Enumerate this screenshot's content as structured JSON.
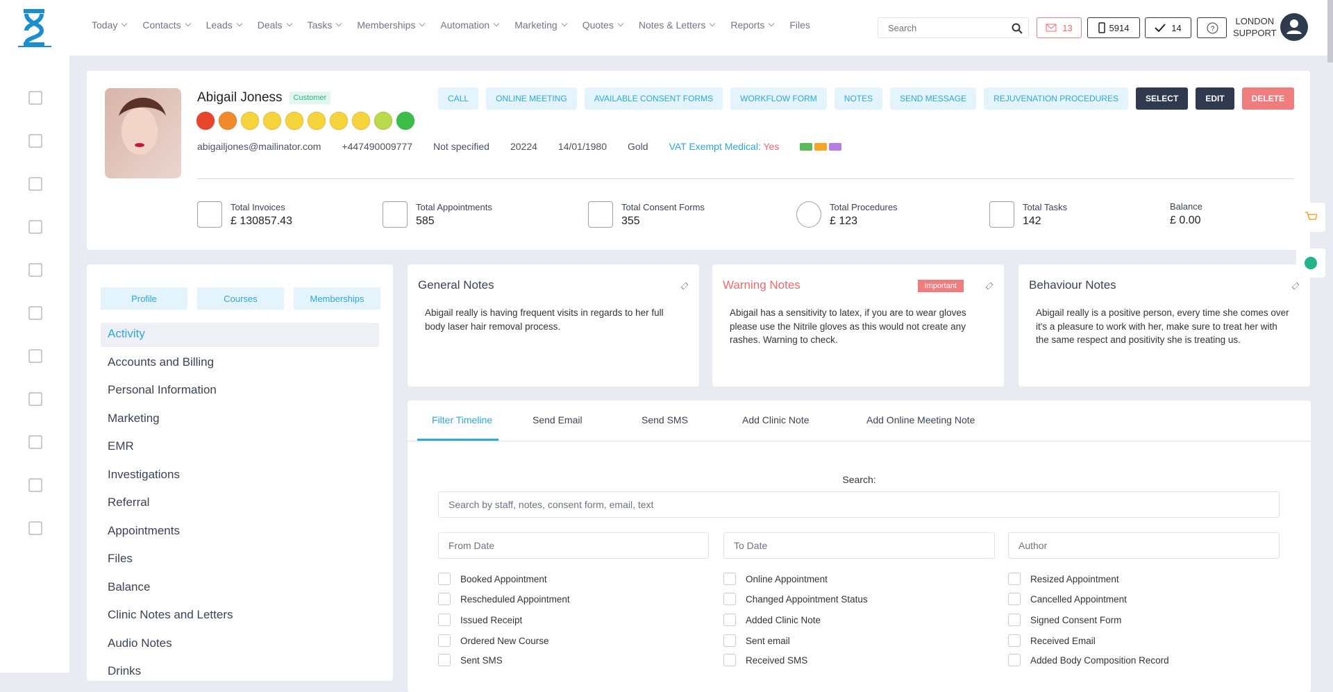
{
  "nav": {
    "items": [
      "Today",
      "Contacts",
      "Leads",
      "Deals",
      "Tasks",
      "Memberships",
      "Automation",
      "Marketing",
      "Quotes",
      "Notes & Letters",
      "Reports",
      "Files"
    ],
    "search_placeholder": "Search",
    "mail_count": "13",
    "phone_count": "5914",
    "tasks_count": "14",
    "user_line1": "LONDON",
    "user_line2": "SUPPORT"
  },
  "profile": {
    "name": "Abigail Joness",
    "tag": "Customer",
    "email": "abigailjones@mailinator.com",
    "phone": "+447490009777",
    "gender": "Not specified",
    "id": "20224",
    "dob": "14/01/1980",
    "tier": "Gold",
    "vat_label": "VAT Exempt Medical:",
    "vat_value": "Yes",
    "actions": [
      "CALL",
      "ONLINE MEETING",
      "AVAILABLE CONSENT FORMS",
      "WORKFLOW FORM",
      "NOTES",
      "SEND MESSAGE",
      "REJUVENATION PROCEDURES"
    ],
    "buttons": [
      "SELECT",
      "EDIT",
      "DELETE"
    ]
  },
  "stats": [
    {
      "label": "Total Invoices",
      "value": "£ 130857.43"
    },
    {
      "label": "Total Appointments",
      "value": "585"
    },
    {
      "label": "Total Consent Forms",
      "value": "355"
    },
    {
      "label": "Total Procedures",
      "value": "£ 123"
    },
    {
      "label": "Total Tasks",
      "value": "142"
    },
    {
      "label": "Balance",
      "value": "£ 0.00"
    }
  ],
  "subtabs": [
    "Profile",
    "Courses",
    "Memberships"
  ],
  "menu": [
    "Activity",
    "Accounts and Billing",
    "Personal Information",
    "Marketing",
    "EMR",
    "Investigations",
    "Referral",
    "Appointments",
    "Files",
    "Balance",
    "Clinic Notes and Letters",
    "Audio Notes",
    "Drinks"
  ],
  "notes": [
    {
      "title": "General Notes",
      "text": "Abigail really is having frequent visits in regards to her full body laser hair removal process."
    },
    {
      "title": "Warning Notes",
      "badge": "Important",
      "text": "Abigail has a sensitivity to latex, if you are to wear gloves please use the Nitrile gloves as this would not create any rashes. Warning to check."
    },
    {
      "title": "Behaviour Notes",
      "text": "Abigail really is a positive person, every time she comes over it's a pleasure to work with her, make sure to treat her with the same respect and positivity she is treating us."
    }
  ],
  "timeline": {
    "tabs": [
      "Filter Timeline",
      "Send Email",
      "Send SMS",
      "Add Clinic Note",
      "Add Online Meeting Note"
    ],
    "search_label": "Search:",
    "search_placeholder": "Search by staff, notes, consent form, email, text",
    "from_placeholder": "From Date",
    "to_placeholder": "To Date",
    "author_placeholder": "Author",
    "filters": [
      "Booked Appointment",
      "Online Appointment",
      "Resized Appointment",
      "Rescheduled Appointment",
      "Changed Appointment Status",
      "Cancelled Appointment",
      "Issued Receipt",
      "Added Clinic Note",
      "Signed Consent Form",
      "Ordered New Course",
      "Sent email",
      "Received Email",
      "Sent SMS",
      "Received SMS",
      "Added Body Composition Record"
    ]
  }
}
